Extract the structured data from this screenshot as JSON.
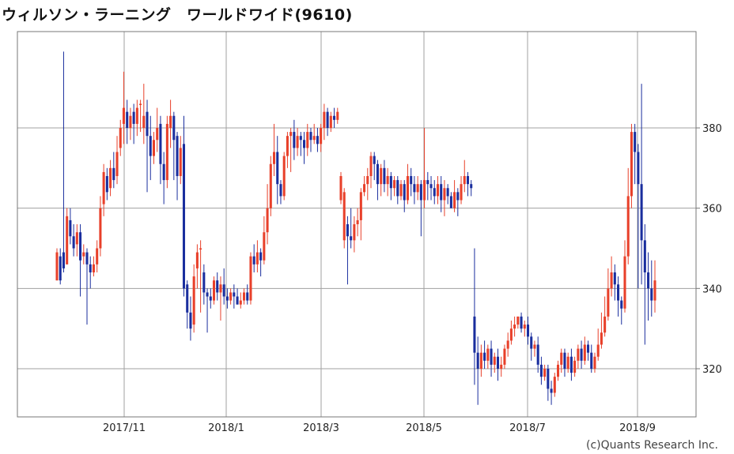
{
  "title": "ウィルソン・ラーニング　ワールドワイド(9610)",
  "copyright": "(c)Quants Research Inc.",
  "colors": {
    "up": "#e8402a",
    "down": "#1a2e9e",
    "grid": "#a0a0a0",
    "axis": "#777777"
  },
  "chart_data": {
    "type": "candlestick",
    "title": "ウィルソン・ラーニング　ワールドワイド(9610)",
    "xlabel": "",
    "ylabel": "",
    "ylim": [
      308,
      404
    ],
    "x_ticks": [
      "2017/11",
      "2018/1",
      "2018/3",
      "2018/5",
      "2018/7",
      "2018/9"
    ],
    "y_ticks": [
      320,
      340,
      360,
      380
    ],
    "grid": true,
    "y_axis_side": "right",
    "series": [
      {
        "segment": "2017/09-2017/10",
        "low": 331,
        "high": 399,
        "open_range": [
          342,
          390
        ]
      },
      {
        "segment": "2017/11-2017/12",
        "low": 327,
        "high": 390,
        "open_range": [
          336,
          383
        ]
      },
      {
        "segment": "2018/01-2018/02",
        "low": 341,
        "high": 387,
        "open_range": [
          346,
          382
        ]
      },
      {
        "segment": "2018/03-2018/05",
        "low": 351,
        "high": 380,
        "open_range": [
          357,
          374
        ]
      },
      {
        "segment": "2018/05-2018/07",
        "low": 311,
        "high": 350,
        "open_range": [
          316,
          333
        ]
      },
      {
        "segment": "2018/07-2018/09",
        "low": 308,
        "high": 391,
        "open_range": [
          316,
          381
        ]
      }
    ],
    "candles": [
      [
        342,
        349,
        342,
        350
      ],
      [
        348,
        342,
        341,
        350
      ],
      [
        349,
        345,
        344,
        399
      ],
      [
        346,
        358,
        346,
        360
      ],
      [
        357,
        353,
        351,
        360
      ],
      [
        353,
        350,
        348,
        356
      ],
      [
        351,
        354,
        348,
        356
      ],
      [
        354,
        347,
        338,
        356
      ],
      [
        348,
        349,
        346,
        351
      ],
      [
        349,
        346,
        331,
        350
      ],
      [
        346,
        344,
        340,
        348
      ],
      [
        344,
        346,
        343,
        348
      ],
      [
        346,
        350,
        344,
        352
      ],
      [
        350,
        360,
        348,
        363
      ],
      [
        361,
        369,
        358,
        371
      ],
      [
        368,
        364,
        362,
        370
      ],
      [
        365,
        370,
        363,
        372
      ],
      [
        370,
        367,
        365,
        374
      ],
      [
        368,
        374,
        366,
        378
      ],
      [
        375,
        380,
        373,
        382
      ],
      [
        381,
        385,
        376,
        394
      ],
      [
        384,
        380,
        376,
        387
      ],
      [
        380,
        383,
        377,
        385
      ],
      [
        384,
        381,
        376,
        386
      ],
      [
        381,
        385,
        378,
        387
      ],
      [
        386,
        386,
        379,
        387
      ],
      [
        380,
        383,
        376,
        391
      ],
      [
        384,
        378,
        364,
        387
      ],
      [
        378,
        373,
        367,
        383
      ],
      [
        373,
        377,
        371,
        379
      ],
      [
        377,
        380,
        374,
        385
      ],
      [
        381,
        371,
        366,
        383
      ],
      [
        371,
        367,
        361,
        374
      ],
      [
        367,
        381,
        365,
        383
      ],
      [
        380,
        383,
        375,
        387
      ],
      [
        383,
        377,
        367,
        384
      ],
      [
        378,
        368,
        362,
        379
      ],
      [
        368,
        375,
        366,
        378
      ],
      [
        376,
        340,
        338,
        383
      ],
      [
        341,
        334,
        330,
        342
      ],
      [
        334,
        330,
        327,
        338
      ],
      [
        331,
        343,
        329,
        346
      ],
      [
        345,
        349,
        340,
        351
      ],
      [
        350,
        350,
        334,
        352
      ],
      [
        344,
        339,
        336,
        346
      ],
      [
        339,
        338,
        329,
        340
      ],
      [
        338,
        337,
        335,
        340
      ],
      [
        337,
        342,
        336,
        343
      ],
      [
        342,
        339,
        337,
        344
      ],
      [
        339,
        341,
        332,
        343
      ],
      [
        341,
        338,
        336,
        345
      ],
      [
        338,
        337,
        335,
        340
      ],
      [
        337,
        339,
        336,
        340
      ],
      [
        339,
        338,
        335,
        341
      ],
      [
        338,
        336,
        336,
        340
      ],
      [
        336,
        337,
        335,
        339
      ],
      [
        337,
        339,
        336,
        340
      ],
      [
        339,
        337,
        336,
        341
      ],
      [
        337,
        348,
        336,
        349
      ],
      [
        348,
        346,
        344,
        351
      ],
      [
        346,
        349,
        344,
        352
      ],
      [
        349,
        347,
        343,
        350
      ],
      [
        347,
        354,
        346,
        358
      ],
      [
        354,
        360,
        351,
        366
      ],
      [
        360,
        371,
        358,
        373
      ],
      [
        371,
        374,
        368,
        381
      ],
      [
        374,
        366,
        361,
        378
      ],
      [
        366,
        363,
        361,
        367
      ],
      [
        363,
        373,
        362,
        374
      ],
      [
        373,
        378,
        370,
        379
      ],
      [
        378,
        379,
        369,
        380
      ],
      [
        379,
        375,
        372,
        382
      ],
      [
        375,
        378,
        373,
        380
      ],
      [
        378,
        377,
        373,
        379
      ],
      [
        377,
        375,
        371,
        379
      ],
      [
        375,
        379,
        373,
        381
      ],
      [
        379,
        377,
        374,
        380
      ],
      [
        377,
        378,
        376,
        381
      ],
      [
        378,
        376,
        374,
        380
      ],
      [
        376,
        380,
        374,
        381
      ],
      [
        380,
        384,
        377,
        386
      ],
      [
        384,
        380,
        378,
        385
      ],
      [
        380,
        383,
        379,
        384
      ],
      [
        383,
        382,
        380,
        385
      ],
      [
        382,
        384,
        381,
        385
      ],
      [
        362,
        368,
        361,
        369
      ],
      [
        352,
        364,
        350,
        365
      ],
      [
        356,
        353,
        341,
        358
      ],
      [
        353,
        352,
        350,
        360
      ],
      [
        352,
        356,
        349,
        358
      ],
      [
        356,
        357,
        353,
        360
      ],
      [
        357,
        364,
        352,
        365
      ],
      [
        364,
        366,
        363,
        368
      ],
      [
        366,
        368,
        362,
        370
      ],
      [
        368,
        373,
        365,
        374
      ],
      [
        373,
        371,
        367,
        374
      ],
      [
        371,
        366,
        362,
        372
      ],
      [
        366,
        370,
        363,
        371
      ],
      [
        370,
        366,
        364,
        372
      ],
      [
        366,
        368,
        363,
        370
      ],
      [
        368,
        365,
        362,
        369
      ],
      [
        365,
        367,
        363,
        368
      ],
      [
        367,
        363,
        361,
        368
      ],
      [
        363,
        366,
        362,
        367
      ],
      [
        366,
        362,
        359,
        367
      ],
      [
        362,
        368,
        361,
        371
      ],
      [
        368,
        366,
        363,
        370
      ],
      [
        366,
        364,
        361,
        368
      ],
      [
        364,
        366,
        362,
        368
      ],
      [
        366,
        362,
        353,
        367
      ],
      [
        362,
        367,
        360,
        380
      ],
      [
        367,
        366,
        362,
        369
      ],
      [
        366,
        365,
        362,
        368
      ],
      [
        365,
        363,
        361,
        367
      ],
      [
        363,
        366,
        361,
        368
      ],
      [
        366,
        362,
        359,
        368
      ],
      [
        362,
        365,
        358,
        367
      ],
      [
        365,
        363,
        361,
        366
      ],
      [
        363,
        360,
        360,
        364
      ],
      [
        360,
        364,
        359,
        367
      ],
      [
        364,
        362,
        358,
        365
      ],
      [
        362,
        366,
        361,
        368
      ],
      [
        366,
        368,
        364,
        372
      ],
      [
        368,
        366,
        363,
        369
      ],
      [
        366,
        365,
        363,
        367
      ],
      [
        333,
        324,
        316,
        350
      ],
      [
        324,
        320,
        311,
        328
      ],
      [
        320,
        324,
        318,
        326
      ],
      [
        324,
        322,
        320,
        327
      ],
      [
        322,
        325,
        320,
        326
      ],
      [
        325,
        321,
        318,
        327
      ],
      [
        321,
        323,
        319,
        324
      ],
      [
        323,
        320,
        317,
        325
      ],
      [
        320,
        321,
        318,
        323
      ],
      [
        321,
        325,
        320,
        326
      ],
      [
        325,
        327,
        323,
        329
      ],
      [
        327,
        330,
        326,
        332
      ],
      [
        330,
        331,
        328,
        333
      ],
      [
        331,
        333,
        330,
        333
      ],
      [
        333,
        330,
        329,
        334
      ],
      [
        330,
        331,
        328,
        332
      ],
      [
        331,
        328,
        326,
        333
      ],
      [
        328,
        325,
        322,
        329
      ],
      [
        325,
        326,
        323,
        327
      ],
      [
        326,
        321,
        319,
        328
      ],
      [
        321,
        318,
        316,
        323
      ],
      [
        318,
        320,
        317,
        321
      ],
      [
        320,
        315,
        312,
        321
      ],
      [
        315,
        314,
        311,
        317
      ],
      [
        314,
        318,
        313,
        319
      ],
      [
        318,
        321,
        317,
        322
      ],
      [
        321,
        324,
        319,
        325
      ],
      [
        324,
        320,
        318,
        325
      ],
      [
        320,
        323,
        319,
        324
      ],
      [
        323,
        319,
        317,
        325
      ],
      [
        319,
        322,
        318,
        323
      ],
      [
        322,
        325,
        320,
        326
      ],
      [
        325,
        322,
        320,
        327
      ],
      [
        322,
        326,
        321,
        328
      ],
      [
        326,
        324,
        322,
        327
      ],
      [
        324,
        320,
        319,
        326
      ],
      [
        320,
        323,
        319,
        324
      ],
      [
        323,
        326,
        322,
        330
      ],
      [
        326,
        329,
        325,
        334
      ],
      [
        329,
        333,
        328,
        338
      ],
      [
        333,
        340,
        332,
        345
      ],
      [
        340,
        344,
        338,
        348
      ],
      [
        344,
        341,
        337,
        346
      ],
      [
        341,
        337,
        333,
        343
      ],
      [
        337,
        335,
        331,
        338
      ],
      [
        335,
        348,
        334,
        352
      ],
      [
        348,
        363,
        346,
        370
      ],
      [
        363,
        379,
        360,
        381
      ],
      [
        379,
        374,
        366,
        381
      ],
      [
        374,
        366,
        340,
        376
      ],
      [
        366,
        352,
        341,
        391
      ],
      [
        352,
        344,
        326,
        356
      ],
      [
        344,
        340,
        332,
        349
      ],
      [
        340,
        337,
        333,
        347
      ],
      [
        337,
        342,
        334,
        347
      ]
    ]
  }
}
